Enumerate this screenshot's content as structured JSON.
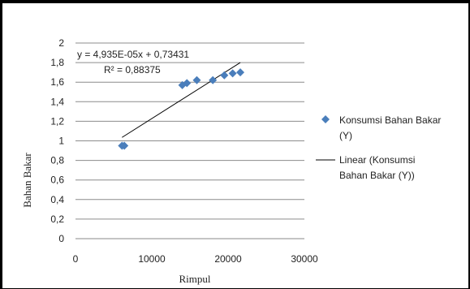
{
  "chart_data": {
    "type": "scatter",
    "xlabel": "Rimpul",
    "ylabel": "Bahan Bakar",
    "xlim": [
      0,
      30000
    ],
    "ylim": [
      0,
      2
    ],
    "x_ticks": [
      0,
      10000,
      20000,
      30000
    ],
    "y_ticks": [
      0,
      0.2,
      0.4,
      0.6,
      0.8,
      1,
      1.2,
      1.4,
      1.6,
      1.8,
      2
    ],
    "x_tick_labels": [
      "0",
      "10000",
      "20000",
      "30000"
    ],
    "y_tick_labels": [
      "0",
      "0,2",
      "0,4",
      "0,6",
      "0,8",
      "1",
      "1,2",
      "1,4",
      "1,6",
      "1,8",
      "2"
    ],
    "grid": "horizontal",
    "series": [
      {
        "name": "Konsumsi Bahan Bakar (Y)",
        "marker": "diamond",
        "color": "#4a7ebb",
        "x": [
          6100,
          6400,
          14000,
          14600,
          15900,
          18000,
          19500,
          20600,
          21600
        ],
        "y": [
          0.95,
          0.95,
          1.57,
          1.59,
          1.62,
          1.62,
          1.67,
          1.69,
          1.7
        ]
      }
    ],
    "trendline": {
      "name": "Linear (Konsumsi Bahan Bakar (Y))",
      "color": "#000000",
      "x_start": 6100,
      "x_end": 21600,
      "slope": 4.935e-05,
      "intercept": 0.73431,
      "equation": "y = 4,935E-05x + 0,73431",
      "r2": "R² = 0,88375"
    },
    "legend": {
      "placement": "right",
      "series_label_lines": [
        "Konsumsi Bahan Bakar",
        "(Y)"
      ],
      "trend_label_lines": [
        "Linear (Konsumsi",
        "Bahan Bakar (Y))"
      ]
    }
  }
}
